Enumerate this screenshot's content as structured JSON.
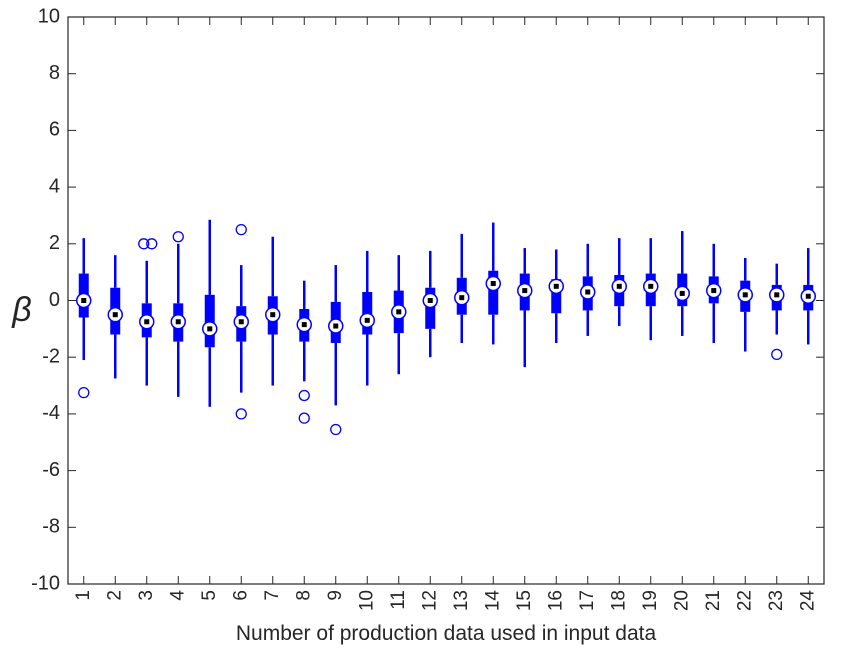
{
  "chart_data": {
    "type": "boxplot",
    "xlabel": "Number of production data used in input data",
    "ylabel": "β",
    "ylim": [
      -10,
      10
    ],
    "yticks": [
      "10",
      "8",
      "6",
      "4",
      "2",
      "0",
      "-2",
      "-4",
      "-6",
      "-8",
      "-10"
    ],
    "ytick_values": [
      10,
      8,
      6,
      4,
      2,
      0,
      -2,
      -4,
      -6,
      -8,
      -10
    ],
    "grid": false,
    "box_color": "#0000ff",
    "median_marker_color": "#000000",
    "categories": [
      "1",
      "2",
      "3",
      "4",
      "5",
      "6",
      "7",
      "8",
      "9",
      "10",
      "11",
      "12",
      "13",
      "14",
      "15",
      "16",
      "17",
      "18",
      "19",
      "20",
      "21",
      "22",
      "23",
      "24"
    ],
    "boxes": [
      {
        "category": "1",
        "whisker_low": -2.1,
        "q1": -0.6,
        "median": 0.0,
        "q3": 0.95,
        "whisker_high": 2.2,
        "outliers": [
          -3.25
        ]
      },
      {
        "category": "2",
        "whisker_low": -2.75,
        "q1": -1.2,
        "median": -0.5,
        "q3": 0.45,
        "whisker_high": 1.6,
        "outliers": []
      },
      {
        "category": "3",
        "whisker_low": -3.0,
        "q1": -1.3,
        "median": -0.75,
        "q3": -0.1,
        "whisker_high": 1.4,
        "outliers": [
          2.0,
          2.0
        ]
      },
      {
        "category": "4",
        "whisker_low": -3.4,
        "q1": -1.45,
        "median": -0.75,
        "q3": -0.1,
        "whisker_high": 2.0,
        "outliers": [
          2.25
        ]
      },
      {
        "category": "5",
        "whisker_low": -3.75,
        "q1": -1.65,
        "median": -1.0,
        "q3": 0.2,
        "whisker_high": 2.85,
        "outliers": []
      },
      {
        "category": "6",
        "whisker_low": -3.25,
        "q1": -1.45,
        "median": -0.75,
        "q3": -0.2,
        "whisker_high": 1.25,
        "outliers": [
          2.5,
          -4.0
        ]
      },
      {
        "category": "7",
        "whisker_low": -3.0,
        "q1": -1.2,
        "median": -0.5,
        "q3": 0.15,
        "whisker_high": 2.25,
        "outliers": []
      },
      {
        "category": "8",
        "whisker_low": -2.85,
        "q1": -1.45,
        "median": -0.85,
        "q3": -0.3,
        "whisker_high": 0.7,
        "outliers": [
          -3.35,
          -4.15
        ]
      },
      {
        "category": "9",
        "whisker_low": -3.7,
        "q1": -1.5,
        "median": -0.9,
        "q3": -0.05,
        "whisker_high": 1.25,
        "outliers": [
          -4.55
        ]
      },
      {
        "category": "10",
        "whisker_low": -3.0,
        "q1": -1.2,
        "median": -0.7,
        "q3": 0.3,
        "whisker_high": 1.75,
        "outliers": []
      },
      {
        "category": "11",
        "whisker_low": -2.6,
        "q1": -1.15,
        "median": -0.4,
        "q3": 0.35,
        "whisker_high": 1.6,
        "outliers": []
      },
      {
        "category": "12",
        "whisker_low": -2.0,
        "q1": -1.0,
        "median": 0.0,
        "q3": 0.45,
        "whisker_high": 1.75,
        "outliers": []
      },
      {
        "category": "13",
        "whisker_low": -1.5,
        "q1": -0.5,
        "median": 0.1,
        "q3": 0.8,
        "whisker_high": 2.35,
        "outliers": []
      },
      {
        "category": "14",
        "whisker_low": -1.55,
        "q1": -0.5,
        "median": 0.6,
        "q3": 1.05,
        "whisker_high": 2.75,
        "outliers": []
      },
      {
        "category": "15",
        "whisker_low": -2.35,
        "q1": -0.35,
        "median": 0.35,
        "q3": 0.95,
        "whisker_high": 1.85,
        "outliers": []
      },
      {
        "category": "16",
        "whisker_low": -1.5,
        "q1": -0.45,
        "median": 0.5,
        "q3": 0.75,
        "whisker_high": 1.8,
        "outliers": []
      },
      {
        "category": "17",
        "whisker_low": -1.25,
        "q1": -0.35,
        "median": 0.3,
        "q3": 0.85,
        "whisker_high": 2.0,
        "outliers": []
      },
      {
        "category": "18",
        "whisker_low": -0.9,
        "q1": -0.2,
        "median": 0.5,
        "q3": 0.9,
        "whisker_high": 2.2,
        "outliers": []
      },
      {
        "category": "19",
        "whisker_low": -1.4,
        "q1": -0.2,
        "median": 0.5,
        "q3": 0.95,
        "whisker_high": 2.2,
        "outliers": []
      },
      {
        "category": "20",
        "whisker_low": -1.25,
        "q1": -0.2,
        "median": 0.25,
        "q3": 0.95,
        "whisker_high": 2.45,
        "outliers": []
      },
      {
        "category": "21",
        "whisker_low": -1.5,
        "q1": -0.1,
        "median": 0.35,
        "q3": 0.85,
        "whisker_high": 2.0,
        "outliers": []
      },
      {
        "category": "22",
        "whisker_low": -1.8,
        "q1": -0.4,
        "median": 0.2,
        "q3": 0.7,
        "whisker_high": 1.5,
        "outliers": []
      },
      {
        "category": "23",
        "whisker_low": -1.2,
        "q1": -0.35,
        "median": 0.2,
        "q3": 0.55,
        "whisker_high": 1.3,
        "outliers": [
          -1.9
        ]
      },
      {
        "category": "24",
        "whisker_low": -1.55,
        "q1": -0.35,
        "median": 0.15,
        "q3": 0.55,
        "whisker_high": 1.85,
        "outliers": []
      }
    ]
  }
}
